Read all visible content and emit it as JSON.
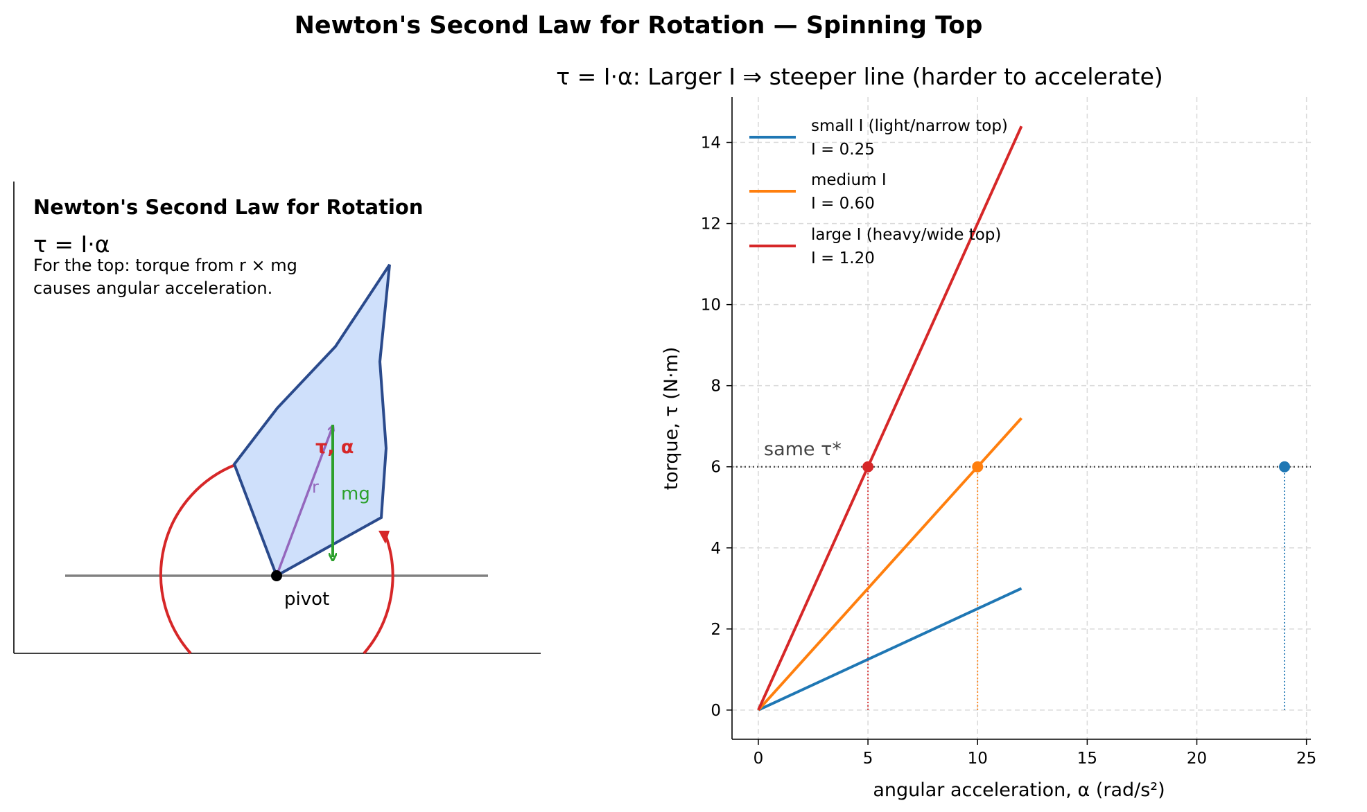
{
  "figure": {
    "suptitle": "Newton's Second Law for Rotation — Spinning Top"
  },
  "diagram": {
    "title": "Newton's Second Law for Rotation",
    "equation": "τ = I·α",
    "description_line1": "For the top: torque from r × mg",
    "description_line2": "causes angular acceleration.",
    "label_tau_alpha": "τ, α",
    "label_r": "r",
    "label_mg": "mg",
    "label_pivot": "pivot",
    "colors": {
      "top_fill": "#cfe0fb",
      "top_edge": "#2a4a8c",
      "r_vector": "#9467bd",
      "mg_vector": "#2ca02c",
      "torque_arc": "#d62728",
      "ground": "#808080"
    }
  },
  "chart_data": {
    "type": "line",
    "title": "τ = I·α: Larger I ⇒ steeper line (harder to accelerate)",
    "xlabel": "angular acceleration, α (rad/s²)",
    "ylabel": "torque, τ (N·m)",
    "xlim": [
      -1.2,
      25.2
    ],
    "ylim": [
      -0.72,
      15.12
    ],
    "xticks": [
      0,
      5,
      10,
      15,
      20,
      25
    ],
    "yticks": [
      0,
      2,
      4,
      6,
      8,
      10,
      12,
      14
    ],
    "grid": true,
    "legend_position": "upper-left",
    "series": [
      {
        "name": "small I (light/narrow top)",
        "name_line2": "I = 0.25",
        "I": 0.25,
        "color": "#1f77b4",
        "x": [
          0,
          12
        ],
        "y": [
          0,
          3.0
        ],
        "alpha_at_same_tau": 24
      },
      {
        "name": "medium I",
        "name_line2": "I = 0.60",
        "I": 0.6,
        "color": "#ff7f0e",
        "x": [
          0,
          12
        ],
        "y": [
          0,
          7.2
        ],
        "alpha_at_same_tau": 10
      },
      {
        "name": "large I (heavy/wide top)",
        "name_line2": "I = 1.20",
        "I": 1.2,
        "color": "#d62728",
        "x": [
          0,
          12
        ],
        "y": [
          0,
          14.4
        ],
        "alpha_at_same_tau": 5
      }
    ],
    "reference_line": {
      "y": 6,
      "label": "same τ*",
      "color": "#444444"
    }
  }
}
